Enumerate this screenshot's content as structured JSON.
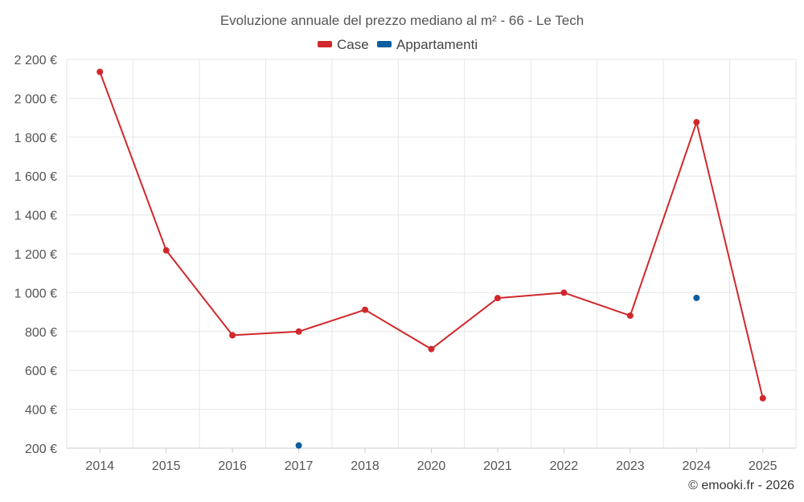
{
  "chart_data": {
    "type": "line",
    "title": "Evoluzione annuale del prezzo mediano al m² - 66 - Le Tech",
    "categories": [
      "2014",
      "2015",
      "2016",
      "2017",
      "2018",
      "2020",
      "2021",
      "2022",
      "2023",
      "2024",
      "2025"
    ],
    "series": [
      {
        "name": "Case",
        "color": "#d0282b",
        "values": [
          2136,
          1218,
          781,
          800,
          912,
          710,
          972,
          1000,
          882,
          1877,
          457
        ]
      },
      {
        "name": "Appartamenti",
        "color": "#0b5fa0",
        "values": [
          null,
          null,
          null,
          214,
          null,
          null,
          null,
          null,
          null,
          973,
          null
        ]
      }
    ],
    "ylim": [
      200,
      2200
    ],
    "yticks": [
      200,
      400,
      600,
      800,
      1000,
      1200,
      1400,
      1600,
      1800,
      2000,
      2200
    ],
    "ytick_labels": [
      "200 €",
      "400 €",
      "600 €",
      "800 €",
      "1 000 €",
      "1 200 €",
      "1 400 €",
      "1 600 €",
      "1 800 €",
      "2 000 €",
      "2 200 €"
    ],
    "xlabel": "",
    "ylabel": "",
    "grid": true,
    "legend_position": "top-center"
  },
  "credit": "© emooki.fr - 2026"
}
